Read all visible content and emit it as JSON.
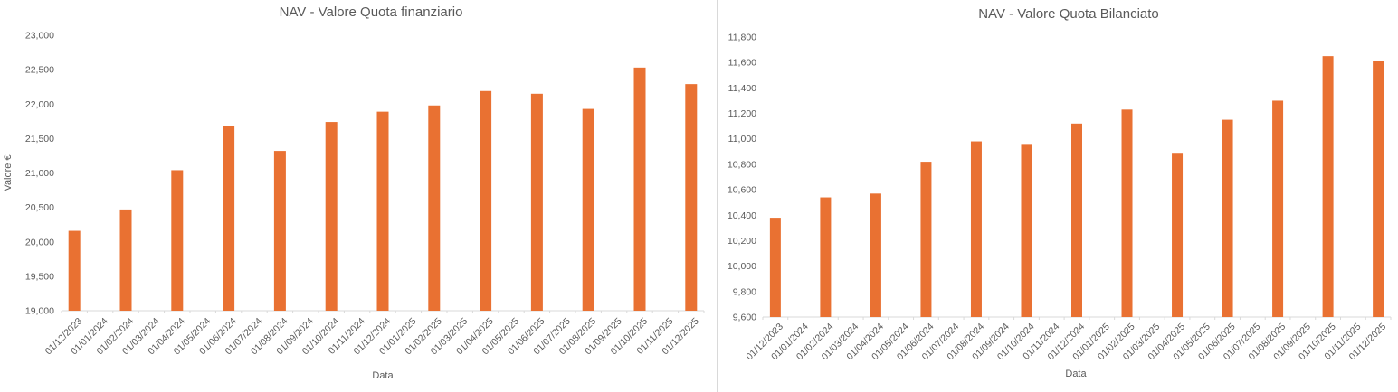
{
  "styles": {
    "bar_color": "#E97132",
    "text_color": "#595959",
    "axis_line_color": "#d9d9d9",
    "background": "#ffffff",
    "divider_color": "#d9d9d9"
  },
  "chart_data": [
    {
      "type": "bar",
      "title": "NAV - Valore Quota finanziario",
      "xlabel": "Data",
      "ylabel": "Valore €",
      "ylim": [
        19000,
        23000
      ],
      "ytick_step": 500,
      "ytick_labels": [
        "19,000",
        "19,500",
        "20,000",
        "20,500",
        "21,000",
        "21,500",
        "22,000",
        "22,500",
        "23,000"
      ],
      "x_axis_labels": [
        "01/12/2023",
        "01/01/2024",
        "01/02/2024",
        "01/03/2024",
        "01/04/2024",
        "01/05/2024",
        "01/06/2024",
        "01/07/2024",
        "01/08/2024",
        "01/09/2024",
        "01/10/2024",
        "01/11/2024",
        "01/12/2024",
        "01/01/2025",
        "01/02/2025",
        "01/03/2025",
        "01/04/2025",
        "01/05/2025",
        "01/06/2025",
        "01/07/2025",
        "01/08/2025",
        "01/09/2025",
        "01/10/2025",
        "01/11/2025",
        "01/12/2025"
      ],
      "categories": [
        "01/12/2023",
        "01/02/2024",
        "01/04/2024",
        "01/06/2024",
        "01/08/2024",
        "01/10/2024",
        "01/12/2024",
        "01/02/2025",
        "01/04/2025",
        "01/06/2025",
        "01/08/2025",
        "01/10/2025",
        "01/12/2025"
      ],
      "values": [
        20160,
        20470,
        21040,
        21680,
        21320,
        21740,
        21890,
        21980,
        22190,
        22150,
        21930,
        22530,
        22290
      ],
      "grid": false,
      "legend": "none"
    },
    {
      "type": "bar",
      "title": "NAV - Valore Quota Bilanciato",
      "xlabel": "Data",
      "ylabel": "",
      "ylim": [
        9600,
        11800
      ],
      "ytick_step": 200,
      "ytick_labels": [
        "9,600",
        "9,800",
        "10,000",
        "10,200",
        "10,400",
        "10,600",
        "10,800",
        "11,000",
        "11,200",
        "11,400",
        "11,600",
        "11,800"
      ],
      "x_axis_labels": [
        "01/12/2023",
        "01/01/2024",
        "01/02/2024",
        "01/03/2024",
        "01/04/2024",
        "01/05/2024",
        "01/06/2024",
        "01/07/2024",
        "01/08/2024",
        "01/09/2024",
        "01/10/2024",
        "01/11/2024",
        "01/12/2024",
        "01/01/2025",
        "01/02/2025",
        "01/03/2025",
        "01/04/2025",
        "01/05/2025",
        "01/06/2025",
        "01/07/2025",
        "01/08/2025",
        "01/09/2025",
        "01/10/2025",
        "01/11/2025",
        "01/12/2025"
      ],
      "categories": [
        "01/12/2023",
        "01/02/2024",
        "01/04/2024",
        "01/06/2024",
        "01/08/2024",
        "01/10/2024",
        "01/12/2024",
        "01/02/2025",
        "01/04/2025",
        "01/06/2025",
        "01/08/2025",
        "01/10/2025",
        "01/12/2025"
      ],
      "values": [
        10380,
        10540,
        10570,
        10820,
        10980,
        10960,
        11120,
        11230,
        10890,
        11150,
        11300,
        11650,
        11610
      ],
      "grid": false,
      "legend": "none"
    }
  ]
}
